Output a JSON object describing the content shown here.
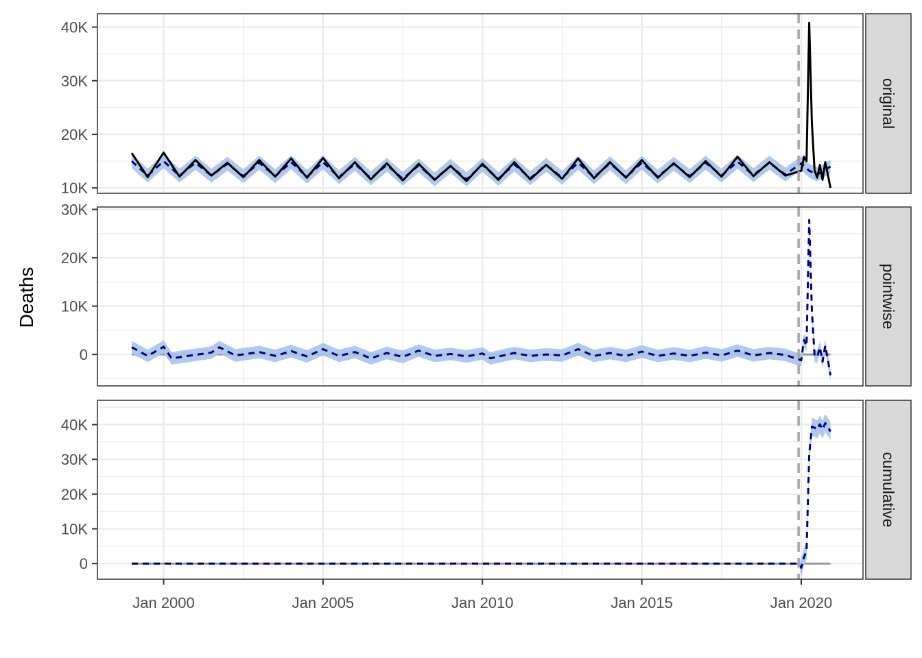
{
  "chart_data": {
    "type": "line",
    "ylabel": "Deaths",
    "x_ticks": [
      "Jan 2000",
      "Jan 2005",
      "Jan 2010",
      "Jan 2015",
      "Jan 2020"
    ],
    "intervention_date": "2019-12",
    "colors": {
      "observed": "#000000",
      "predicted": "#000080",
      "interval": "#a9c4ea",
      "zero_line": "#999999",
      "intervention_line": "#a6a6a6",
      "strip_fill": "#d9d9d9"
    },
    "panels": [
      {
        "strip": "original",
        "ylim": [
          9000,
          42500
        ],
        "y_ticks": [
          10000,
          20000,
          30000,
          40000
        ],
        "y_tick_labels": [
          "10K",
          "20K",
          "30K",
          "40K"
        ],
        "zero_line": false,
        "series": [
          {
            "role": "observed",
            "style": "solid",
            "points": [
              [
                "1999-01",
                16500
              ],
              [
                "1999-07",
                12000
              ],
              [
                "2000-01",
                16600
              ],
              [
                "2000-07",
                12100
              ],
              [
                "2001-01",
                15200
              ],
              [
                "2001-07",
                12300
              ],
              [
                "2002-01",
                14700
              ],
              [
                "2002-07",
                12000
              ],
              [
                "2003-01",
                15200
              ],
              [
                "2003-07",
                12100
              ],
              [
                "2004-01",
                15500
              ],
              [
                "2004-07",
                11900
              ],
              [
                "2005-01",
                15600
              ],
              [
                "2005-07",
                11800
              ],
              [
                "2006-01",
                14800
              ],
              [
                "2006-07",
                11600
              ],
              [
                "2007-01",
                14600
              ],
              [
                "2007-07",
                11400
              ],
              [
                "2008-01",
                14500
              ],
              [
                "2008-07",
                11500
              ],
              [
                "2009-01",
                14100
              ],
              [
                "2009-07",
                11300
              ],
              [
                "2010-01",
                14500
              ],
              [
                "2010-07",
                11500
              ],
              [
                "2011-01",
                14800
              ],
              [
                "2011-07",
                11600
              ],
              [
                "2012-01",
                14300
              ],
              [
                "2012-07",
                11700
              ],
              [
                "2013-01",
                15500
              ],
              [
                "2013-07",
                11800
              ],
              [
                "2014-01",
                14800
              ],
              [
                "2014-07",
                11900
              ],
              [
                "2015-01",
                15200
              ],
              [
                "2015-07",
                11900
              ],
              [
                "2016-01",
                14600
              ],
              [
                "2016-07",
                12000
              ],
              [
                "2017-01",
                15000
              ],
              [
                "2017-07",
                12100
              ],
              [
                "2018-01",
                15800
              ],
              [
                "2018-07",
                12200
              ],
              [
                "2019-01",
                14800
              ],
              [
                "2019-07",
                12300
              ],
              [
                "2020-01",
                13200
              ],
              [
                "2020-02",
                15800
              ],
              [
                "2020-03",
                15000
              ],
              [
                "2020-04",
                40800
              ],
              [
                "2020-05",
                22000
              ],
              [
                "2020-06",
                13300
              ],
              [
                "2020-07",
                11900
              ],
              [
                "2020-08",
                14300
              ],
              [
                "2020-09",
                11500
              ],
              [
                "2020-10",
                14800
              ],
              [
                "2020-11",
                12500
              ],
              [
                "2020-12",
                10000
              ]
            ]
          },
          {
            "role": "predicted",
            "style": "dashed",
            "points": [
              [
                "1999-01",
                15000
              ],
              [
                "1999-07",
                12300
              ],
              [
                "2000-01",
                15000
              ],
              [
                "2000-07",
                12300
              ],
              [
                "2001-01",
                14700
              ],
              [
                "2001-07",
                12300
              ],
              [
                "2002-01",
                14500
              ],
              [
                "2002-07",
                12200
              ],
              [
                "2003-01",
                14700
              ],
              [
                "2003-07",
                12200
              ],
              [
                "2004-01",
                14800
              ],
              [
                "2004-07",
                12100
              ],
              [
                "2005-01",
                14800
              ],
              [
                "2005-07",
                12000
              ],
              [
                "2006-01",
                14500
              ],
              [
                "2006-07",
                11800
              ],
              [
                "2007-01",
                14300
              ],
              [
                "2007-07",
                11700
              ],
              [
                "2008-01",
                14200
              ],
              [
                "2008-07",
                11600
              ],
              [
                "2009-01",
                14100
              ],
              [
                "2009-07",
                11600
              ],
              [
                "2010-01",
                14300
              ],
              [
                "2010-07",
                11700
              ],
              [
                "2011-01",
                14400
              ],
              [
                "2011-07",
                11800
              ],
              [
                "2012-01",
                14300
              ],
              [
                "2012-07",
                11900
              ],
              [
                "2013-01",
                14700
              ],
              [
                "2013-07",
                12000
              ],
              [
                "2014-01",
                14600
              ],
              [
                "2014-07",
                12000
              ],
              [
                "2015-01",
                14700
              ],
              [
                "2015-07",
                12100
              ],
              [
                "2016-01",
                14500
              ],
              [
                "2016-07",
                12200
              ],
              [
                "2017-01",
                14700
              ],
              [
                "2017-07",
                12300
              ],
              [
                "2018-01",
                14900
              ],
              [
                "2018-07",
                12400
              ],
              [
                "2019-01",
                14700
              ],
              [
                "2019-07",
                12500
              ],
              [
                "2020-01",
                14600
              ],
              [
                "2020-04",
                13200
              ],
              [
                "2020-07",
                12500
              ],
              [
                "2020-10",
                13400
              ],
              [
                "2020-12",
                14000
              ]
            ]
          }
        ]
      },
      {
        "strip": "pointwise",
        "ylim": [
          -6500,
          30500
        ],
        "y_ticks": [
          0,
          10000,
          20000,
          30000
        ],
        "y_tick_labels": [
          "0",
          "10K",
          "20K",
          "30K"
        ],
        "zero_line": true,
        "series": [
          {
            "role": "predicted",
            "style": "dashed",
            "points": [
              [
                "1999-01",
                1500
              ],
              [
                "1999-07",
                -300
              ],
              [
                "2000-01",
                1600
              ],
              [
                "2000-04",
                -800
              ],
              [
                "2001-07",
                400
              ],
              [
                "2001-10",
                1500
              ],
              [
                "2002-04",
                -200
              ],
              [
                "2003-01",
                500
              ],
              [
                "2003-07",
                -300
              ],
              [
                "2004-01",
                700
              ],
              [
                "2004-07",
                -400
              ],
              [
                "2005-01",
                1100
              ],
              [
                "2005-07",
                -300
              ],
              [
                "2006-01",
                500
              ],
              [
                "2006-07",
                -800
              ],
              [
                "2007-01",
                300
              ],
              [
                "2007-07",
                -500
              ],
              [
                "2008-01",
                800
              ],
              [
                "2008-07",
                -300
              ],
              [
                "2009-01",
                100
              ],
              [
                "2009-07",
                -400
              ],
              [
                "2010-01",
                200
              ],
              [
                "2010-04",
                -800
              ],
              [
                "2011-01",
                300
              ],
              [
                "2011-07",
                -300
              ],
              [
                "2012-01",
                0
              ],
              [
                "2012-07",
                -200
              ],
              [
                "2013-01",
                1100
              ],
              [
                "2013-07",
                -300
              ],
              [
                "2014-01",
                300
              ],
              [
                "2014-07",
                -300
              ],
              [
                "2015-01",
                600
              ],
              [
                "2015-07",
                -300
              ],
              [
                "2016-01",
                200
              ],
              [
                "2016-07",
                -300
              ],
              [
                "2017-01",
                400
              ],
              [
                "2017-07",
                -200
              ],
              [
                "2018-01",
                800
              ],
              [
                "2018-07",
                -200
              ],
              [
                "2019-01",
                300
              ],
              [
                "2019-07",
                -100
              ],
              [
                "2020-01",
                -1200
              ],
              [
                "2020-02",
                3000
              ],
              [
                "2020-03",
                1800
              ],
              [
                "2020-04",
                27800
              ],
              [
                "2020-05",
                9000
              ],
              [
                "2020-06",
                -300
              ],
              [
                "2020-07",
                -500
              ],
              [
                "2020-08",
                1500
              ],
              [
                "2020-09",
                -1500
              ],
              [
                "2020-10",
                1800
              ],
              [
                "2020-11",
                -1000
              ],
              [
                "2020-12",
                -4300
              ]
            ]
          }
        ]
      },
      {
        "strip": "cumulative",
        "ylim": [
          -4500,
          47000
        ],
        "y_ticks": [
          0,
          10000,
          20000,
          30000,
          40000
        ],
        "y_tick_labels": [
          "0",
          "10K",
          "20K",
          "30K",
          "40K"
        ],
        "zero_line": true,
        "series": [
          {
            "role": "predicted",
            "style": "dashed",
            "points": [
              [
                "1999-01",
                0
              ],
              [
                "2019-12",
                0
              ],
              [
                "2020-01",
                -1200
              ],
              [
                "2020-02",
                1800
              ],
              [
                "2020-03",
                3600
              ],
              [
                "2020-04",
                31400
              ],
              [
                "2020-05",
                39400
              ],
              [
                "2020-06",
                39100
              ],
              [
                "2020-07",
                38600
              ],
              [
                "2020-08",
                40100
              ],
              [
                "2020-09",
                38600
              ],
              [
                "2020-10",
                40400
              ],
              [
                "2020-11",
                39400
              ],
              [
                "2020-12",
                38000
              ]
            ]
          }
        ]
      }
    ]
  }
}
